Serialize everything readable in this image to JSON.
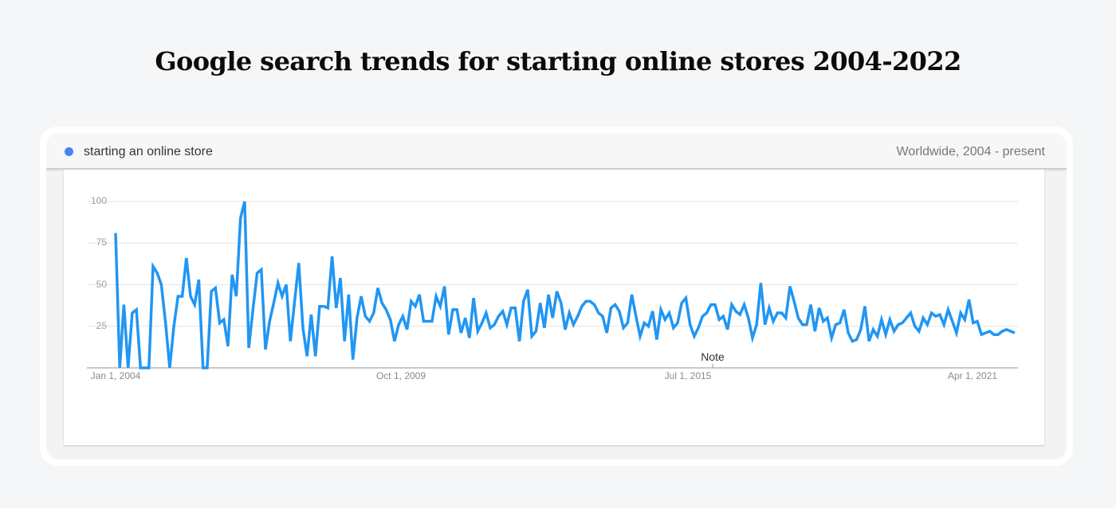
{
  "page": {
    "title": "Google search trends for starting online stores 2004-2022"
  },
  "legend": {
    "series_label": "starting an online store",
    "series_color": "#4285f4",
    "region": "Worldwide, 2004 - present"
  },
  "annotation": {
    "label": "Note"
  },
  "chart_data": {
    "type": "line",
    "title": "Google search trends for starting online stores 2004-2022",
    "xlabel": "",
    "ylabel": "",
    "ylim": [
      0,
      100
    ],
    "yticks": [
      25,
      50,
      75,
      100
    ],
    "xticks": [
      "Jan 1, 2004",
      "Oct 1, 2009",
      "Jul 1, 2015",
      "Apr 1, 2021"
    ],
    "grid": true,
    "legend_position": "top-left",
    "line_color": "#2196f3",
    "annotations": [
      {
        "label": "Note",
        "x": "Jul 1, 2015"
      }
    ],
    "series": [
      {
        "name": "starting an online store",
        "x_start": "Jan 2004",
        "frequency": "monthly",
        "values": [
          81,
          0,
          38,
          0,
          33,
          35,
          0,
          0,
          0,
          61,
          57,
          50,
          27,
          0,
          25,
          43,
          43,
          66,
          43,
          38,
          53,
          0,
          0,
          46,
          48,
          27,
          29,
          13,
          56,
          43,
          90,
          100,
          12,
          35,
          57,
          59,
          11,
          28,
          39,
          51,
          43,
          50,
          16,
          40,
          63,
          24,
          7,
          32,
          7,
          37,
          37,
          36,
          67,
          36,
          54,
          16,
          44,
          5,
          30,
          43,
          31,
          28,
          33,
          48,
          39,
          35,
          29,
          16,
          26,
          31,
          23,
          40,
          37,
          44,
          28,
          28,
          28,
          43,
          37,
          49,
          20,
          35,
          35,
          21,
          30,
          18,
          42,
          22,
          27,
          33,
          24,
          26,
          31,
          34,
          26,
          36,
          36,
          16,
          40,
          47,
          19,
          22,
          39,
          24,
          44,
          30,
          46,
          39,
          23,
          33,
          26,
          31,
          37,
          40,
          40,
          38,
          33,
          31,
          21,
          36,
          38,
          34,
          24,
          27,
          44,
          31,
          19,
          27,
          25,
          34,
          17,
          35,
          29,
          33,
          24,
          27,
          39,
          42,
          26,
          19,
          24,
          31,
          33,
          38,
          38,
          29,
          31,
          23,
          38,
          34,
          32,
          38,
          30,
          18,
          26,
          51,
          26,
          36,
          28,
          33,
          33,
          30,
          49,
          40,
          30,
          26,
          26,
          38,
          22,
          36,
          28,
          30,
          18,
          26,
          27,
          35,
          21,
          16,
          17,
          23,
          37,
          16,
          23,
          19,
          29,
          20,
          29,
          22,
          26,
          27,
          30,
          33,
          25,
          22,
          30,
          26,
          33,
          31,
          32,
          26,
          35,
          28,
          21,
          33,
          29,
          41,
          27,
          28,
          20,
          21,
          22,
          20,
          20,
          22,
          23,
          22,
          21
        ]
      }
    ]
  }
}
